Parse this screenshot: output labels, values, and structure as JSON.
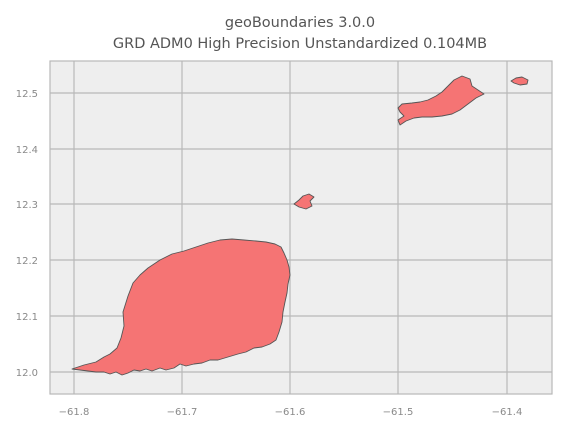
{
  "map": {
    "title_line1": "geoBoundaries 3.0.0",
    "title_line2": "GRD ADM0 High Precision Unstandardized 0.104MB",
    "x_ticks": [
      "−61.8",
      "−61.7",
      "−61.6",
      "−61.5",
      "−61.4"
    ],
    "y_ticks": [
      "12.0",
      "12.1",
      "12.2",
      "12.3",
      "12.4",
      "12.5"
    ],
    "colors": {
      "land_fill": "#f57474",
      "land_edge": "#555555",
      "plot_background": "#eeeeee",
      "grid": "#b8b8b8"
    }
  }
}
